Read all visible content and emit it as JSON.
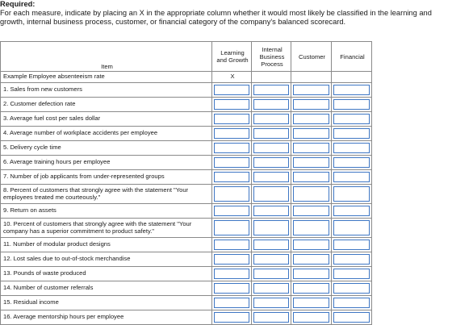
{
  "heading": "Required:",
  "instruction_line1": "For each measure, indicate by placing an X in the appropriate column whether it would most likely be classified in the learning and",
  "instruction_line2": "growth, internal business process, customer, or financial category of the company's balanced scorecard.",
  "columns": {
    "item": "Item",
    "learning_growth": "Learning and Growth",
    "internal_process": "Internal Business Process",
    "customer": "Customer",
    "financial": "Financial"
  },
  "example": {
    "label": "Example Employee absenteeism rate",
    "mark": "X"
  },
  "rows": [
    "1. Sales from new customers",
    "2. Customer defection rate",
    "3. Average fuel cost per sales dollar",
    "4. Average number of workplace accidents per employee",
    "5. Delivery cycle time",
    "6. Average training hours per employee",
    "7. Number of job applicants from under-represented groups",
    "8. Percent of customers that strongly agree with the statement \"Your employees treated me courteously.\"",
    "9. Return on assets",
    "10. Percent of customers that strongly agree with the statement \"Your company has a superior commitment to product safety.\"",
    "11. Number of modular product designs",
    "12. Lost sales due to out-of-stock merchandise",
    "13. Pounds of waste produced",
    "14. Number of customer referrals",
    "15. Residual income",
    "16. Average mentorship hours per employee"
  ],
  "colors": {
    "input_border": "#3f77c4",
    "grid": "#8a8a8a"
  }
}
